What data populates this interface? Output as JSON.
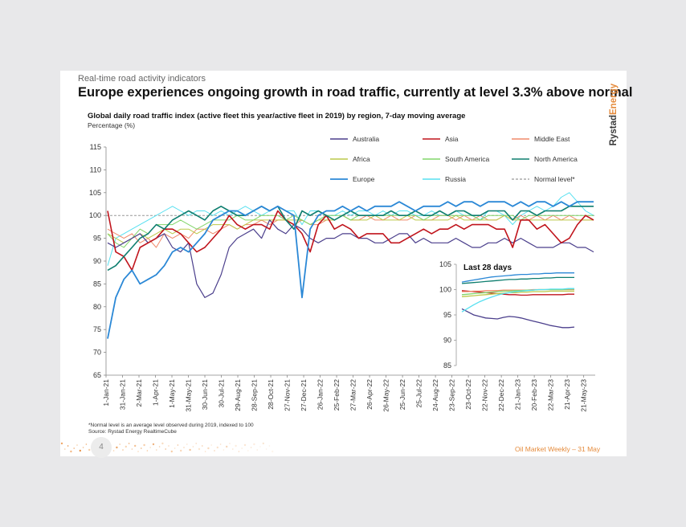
{
  "slide": {
    "kicker": "Real-time road activity indicators",
    "headline": "Europe experiences ongoing growth in road traffic, currently at level 3.3% above normal",
    "brand": "RystadEnergy",
    "brand_main": "Rystad",
    "brand_accent": "Energy",
    "page_number": "4",
    "footer_right": "Oil Market Weekly – 31 May",
    "footnote": "*Normal level is an average level observed during 2019, indexed to 100",
    "source": "Source: Rystad Energy RealtimeCube",
    "colors": {
      "accent": "#e58b3c",
      "brand_text": "#3a3a3a"
    }
  },
  "chart_data": {
    "type": "line",
    "title": "Global daily road traffic index (active fleet this year/active fleet in 2019) by region, 7-day moving average",
    "ylabel": "Percentage (%)",
    "ylim": [
      65,
      115
    ],
    "yticks": [
      65,
      70,
      75,
      80,
      85,
      90,
      95,
      100,
      105,
      110,
      115
    ],
    "x_labels": [
      "1-Jan-21",
      "31-Jan-21",
      "2-Mar-21",
      "1-Apr-21",
      "1-May-21",
      "31-May-21",
      "30-Jun-21",
      "30-Jul-21",
      "29-Aug-21",
      "28-Sep-21",
      "28-Oct-21",
      "27-Nov-21",
      "27-Dec-21",
      "26-Jan-22",
      "25-Feb-22",
      "27-Mar-22",
      "26-Apr-22",
      "26-May-22",
      "25-Jun-22",
      "25-Jul-22",
      "24-Aug-22",
      "23-Sep-22",
      "23-Oct-22",
      "22-Nov-22",
      "22-Dec-22",
      "21-Jan-23",
      "20-Feb-23",
      "22-Mar-23",
      "21-Apr-23",
      "21-May-23"
    ],
    "legend": [
      "Australia",
      "Asia",
      "Middle East",
      "Africa",
      "South America",
      "North America",
      "Europe",
      "Russia",
      "Normal level*"
    ],
    "normal_level": 100,
    "series": [
      {
        "name": "Australia",
        "color": "#4b3f8c",
        "width": 1.2,
        "values": [
          94,
          93,
          94,
          95,
          96,
          94,
          95,
          96,
          93,
          92,
          94,
          85,
          82,
          83,
          87,
          93,
          95,
          96,
          97,
          95,
          99,
          97,
          96,
          98,
          97,
          95,
          94,
          95,
          95,
          96,
          96,
          95,
          95,
          94,
          94,
          95,
          96,
          96,
          94,
          95,
          94,
          94,
          94,
          95,
          94,
          93,
          93,
          94,
          94,
          95,
          94,
          95,
          94,
          93,
          93,
          93,
          94,
          94,
          93,
          93,
          92
        ]
      },
      {
        "name": "Asia",
        "color": "#c0141c",
        "width": 1.6,
        "values": [
          101,
          92,
          91,
          88,
          93,
          94,
          95,
          97,
          97,
          96,
          94,
          92,
          93,
          95,
          97,
          100,
          98,
          97,
          98,
          98,
          97,
          101,
          99,
          98,
          96,
          92,
          98,
          100,
          97,
          98,
          97,
          95,
          96,
          96,
          96,
          94,
          94,
          95,
          96,
          97,
          96,
          97,
          97,
          98,
          97,
          98,
          98,
          98,
          97,
          97,
          93,
          99,
          99,
          97,
          98,
          96,
          94,
          95,
          98,
          100,
          99
        ]
      },
      {
        "name": "Middle East",
        "color": "#f08a6a",
        "width": 1.0,
        "values": [
          97,
          96,
          95,
          96,
          94,
          95,
          93,
          96,
          95,
          96,
          95,
          97,
          97,
          96,
          97,
          98,
          97,
          98,
          98,
          99,
          98,
          99,
          99,
          98,
          99,
          98,
          98,
          99,
          99,
          100,
          99,
          99,
          100,
          99,
          99,
          100,
          99,
          99,
          100,
          99,
          99,
          100,
          100,
          99,
          100,
          99,
          100,
          99,
          99,
          100,
          99,
          100,
          99,
          100,
          99,
          100,
          99,
          100,
          99,
          99,
          99
        ]
      },
      {
        "name": "Africa",
        "color": "#bcc94a",
        "width": 1.0,
        "values": [
          96,
          95,
          94,
          95,
          96,
          95,
          96,
          97,
          96,
          97,
          97,
          96,
          97,
          98,
          98,
          98,
          97,
          98,
          99,
          99,
          99,
          99,
          99,
          99,
          99,
          98,
          99,
          99,
          99,
          100,
          99,
          99,
          99,
          100,
          99,
          99,
          99,
          100,
          99,
          99,
          99,
          99,
          99,
          100,
          99,
          99,
          99,
          99,
          99,
          100,
          99,
          99,
          99,
          99,
          99,
          99,
          99,
          99,
          99,
          99,
          99
        ]
      },
      {
        "name": "South America",
        "color": "#82d56a",
        "width": 1.0,
        "values": [
          96,
          94,
          93,
          95,
          97,
          96,
          98,
          98,
          98,
          99,
          98,
          97,
          98,
          99,
          99,
          99,
          100,
          99,
          99,
          100,
          100,
          100,
          99,
          100,
          99,
          98,
          99,
          100,
          100,
          100,
          99,
          100,
          100,
          100,
          100,
          100,
          100,
          100,
          100,
          99,
          100,
          100,
          100,
          100,
          100,
          100,
          99,
          100,
          100,
          100,
          100,
          99,
          100,
          100,
          100,
          100,
          100,
          100,
          100,
          100,
          100
        ]
      },
      {
        "name": "North America",
        "color": "#0e7e6f",
        "width": 1.6,
        "values": [
          88,
          89,
          91,
          93,
          95,
          96,
          98,
          97,
          99,
          100,
          101,
          100,
          99,
          101,
          102,
          101,
          100,
          100,
          101,
          102,
          101,
          102,
          99,
          97,
          101,
          100,
          101,
          100,
          99,
          100,
          101,
          100,
          100,
          100,
          100,
          101,
          100,
          100,
          101,
          100,
          100,
          101,
          100,
          101,
          101,
          100,
          100,
          101,
          101,
          101,
          99,
          101,
          101,
          100,
          101,
          101,
          101,
          102,
          102,
          102,
          102
        ]
      },
      {
        "name": "Europe",
        "color": "#2b88d6",
        "width": 1.8,
        "values": [
          73,
          82,
          86,
          88,
          85,
          86,
          87,
          89,
          92,
          93,
          92,
          94,
          96,
          99,
          100,
          101,
          101,
          100,
          101,
          102,
          101,
          102,
          101,
          100,
          82,
          97,
          100,
          101,
          101,
          102,
          101,
          102,
          101,
          102,
          102,
          102,
          103,
          102,
          101,
          102,
          102,
          102,
          103,
          102,
          103,
          103,
          102,
          103,
          103,
          103,
          102,
          103,
          102,
          103,
          103,
          102,
          103,
          102,
          103,
          103,
          103
        ]
      },
      {
        "name": "Russia",
        "color": "#57e0f0",
        "width": 1.0,
        "values": [
          89,
          95,
          96,
          97,
          98,
          99,
          100,
          101,
          102,
          101,
          100,
          101,
          101,
          100,
          101,
          100,
          101,
          102,
          101,
          100,
          101,
          102,
          101,
          101,
          98,
          101,
          101,
          100,
          100,
          101,
          100,
          101,
          101,
          100,
          101,
          100,
          101,
          101,
          100,
          100,
          101,
          100,
          100,
          101,
          100,
          100,
          99,
          101,
          101,
          100,
          98,
          100,
          101,
          102,
          101,
          102,
          104,
          105,
          103,
          101,
          100
        ]
      }
    ],
    "inset": {
      "title": "Last 28 days",
      "ylim": [
        85,
        105
      ],
      "yticks": [
        85,
        90,
        95,
        100,
        105
      ],
      "series": [
        {
          "name": "Australia",
          "values": [
            96.2,
            95.6,
            95.0,
            94.7,
            94.4,
            94.3,
            94.2,
            94.5,
            94.7,
            94.6,
            94.4,
            94.1,
            93.8,
            93.5,
            93.2,
            92.9,
            92.7,
            92.5,
            92.5,
            92.6
          ]
        },
        {
          "name": "Asia",
          "values": [
            99.8,
            99.7,
            99.6,
            99.5,
            99.4,
            99.3,
            99.2,
            99.1,
            99.0,
            99.0,
            98.9,
            98.9,
            99.0,
            99.0,
            99.0,
            99.0,
            99.0,
            99.0,
            99.1,
            99.1
          ]
        },
        {
          "name": "Middle East",
          "values": [
            99.6,
            99.6,
            99.7,
            99.7,
            99.8,
            99.8,
            99.8,
            99.9,
            99.9,
            99.9,
            99.9,
            99.9,
            100.0,
            100.0,
            100.0,
            100.0,
            100.0,
            100.0,
            100.0,
            100.0
          ]
        },
        {
          "name": "Africa",
          "values": [
            98.6,
            98.7,
            98.8,
            98.9,
            99.0,
            99.1,
            99.2,
            99.3,
            99.4,
            99.4,
            99.5,
            99.5,
            99.6,
            99.6,
            99.6,
            99.7,
            99.7,
            99.7,
            99.7,
            99.7
          ]
        },
        {
          "name": "South America",
          "values": [
            99.0,
            99.1,
            99.2,
            99.3,
            99.4,
            99.5,
            99.6,
            99.7,
            99.7,
            99.8,
            99.8,
            99.9,
            99.9,
            100.0,
            100.0,
            100.0,
            100.0,
            100.0,
            100.1,
            100.1
          ]
        },
        {
          "name": "North America",
          "values": [
            101.2,
            101.3,
            101.4,
            101.5,
            101.6,
            101.7,
            101.8,
            101.9,
            102.0,
            102.0,
            102.1,
            102.1,
            102.2,
            102.2,
            102.3,
            102.3,
            102.4,
            102.4,
            102.4,
            102.4
          ]
        },
        {
          "name": "Europe",
          "values": [
            101.5,
            101.7,
            101.9,
            102.1,
            102.3,
            102.5,
            102.6,
            102.7,
            102.8,
            102.9,
            103.0,
            103.0,
            103.1,
            103.1,
            103.2,
            103.2,
            103.3,
            103.3,
            103.3,
            103.3
          ]
        },
        {
          "name": "Russia",
          "values": [
            95.6,
            96.3,
            97.0,
            97.6,
            98.1,
            98.5,
            98.9,
            99.2,
            99.4,
            99.6,
            99.7,
            99.8,
            99.9,
            100.0,
            100.0,
            100.1,
            100.1,
            100.1,
            100.2,
            100.2
          ]
        }
      ]
    }
  }
}
